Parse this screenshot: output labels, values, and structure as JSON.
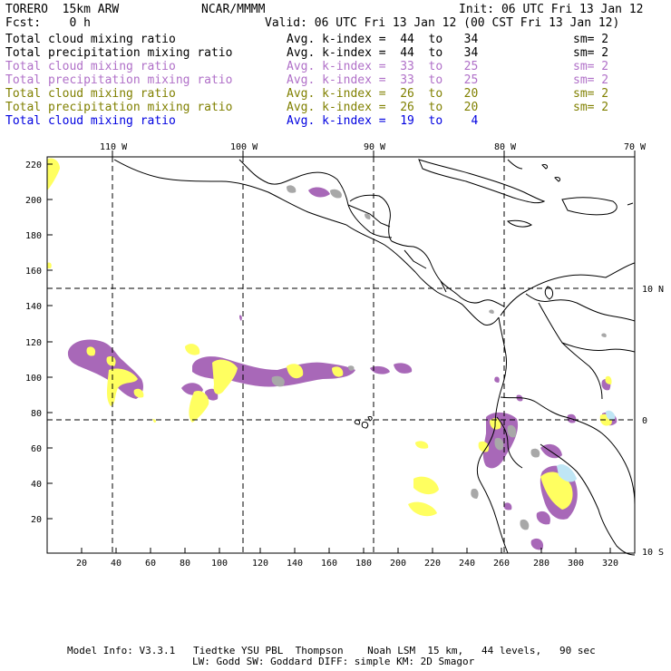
{
  "header": {
    "model": "TORERO  15km ARW",
    "org": "NCAR/MMMM",
    "init": "Init: 06 UTC Fri 13 Jan 12",
    "fcst": "Fcst:    0 h",
    "valid": "Valid: 06 UTC Fri 13 Jan 12 (00 CST Fri 13 Jan 12)"
  },
  "legend": [
    {
      "field": "Total cloud mixing ratio",
      "index": "Avg. k-index =  44  to   34",
      "sm": "sm= 2",
      "color": "#000000"
    },
    {
      "field": "Total precipitation mixing ratio",
      "index": "Avg. k-index =  44  to   34",
      "sm": "sm= 2",
      "color": "#000000"
    },
    {
      "field": "Total cloud mixing ratio",
      "index": "Avg. k-index =  33  to   25",
      "sm": "sm= 2",
      "color": "#b070c8"
    },
    {
      "field": "Total precipitation mixing ratio",
      "index": "Avg. k-index =  33  to   25",
      "sm": "sm= 2",
      "color": "#b070c8"
    },
    {
      "field": "Total cloud mixing ratio",
      "index": "Avg. k-index =  26  to   20",
      "sm": "sm= 2",
      "color": "#808000"
    },
    {
      "field": "Total precipitation mixing ratio",
      "index": "Avg. k-index =  26  to   20",
      "sm": "sm= 2",
      "color": "#808000"
    },
    {
      "field": "Total cloud mixing ratio",
      "index": "Avg. k-index =  19  to    4",
      "sm": "",
      "color": "#0000e0"
    }
  ],
  "map": {
    "top_lon_labels": [
      "110 W",
      "100 W",
      "90 W",
      "80 W",
      "70 W"
    ],
    "right_lat_labels": [
      "10 N",
      "0",
      "10 S"
    ],
    "x_ticks": [
      "20",
      "40",
      "60",
      "80",
      "100",
      "120",
      "140",
      "160",
      "180",
      "200",
      "220",
      "240",
      "260",
      "280",
      "300",
      "320"
    ],
    "y_ticks": [
      "220",
      "200",
      "180",
      "160",
      "140",
      "120",
      "100",
      "80",
      "60",
      "40",
      "20"
    ],
    "colors": {
      "purple": "#a868b8",
      "gray": "#a8a8a8",
      "yellow": "#ffff60",
      "lightblue": "#bfe6f5",
      "coast": "#000000",
      "grid": "#000000"
    }
  },
  "footer": {
    "line1": "Model Info: V3.3.1   Tiedtke YSU PBL  Thompson    Noah LSM  15 km,   44 levels,   90 sec",
    "line2": "LW: Godd SW: Goddard DIFF: simple KM: 2D Smagor"
  }
}
